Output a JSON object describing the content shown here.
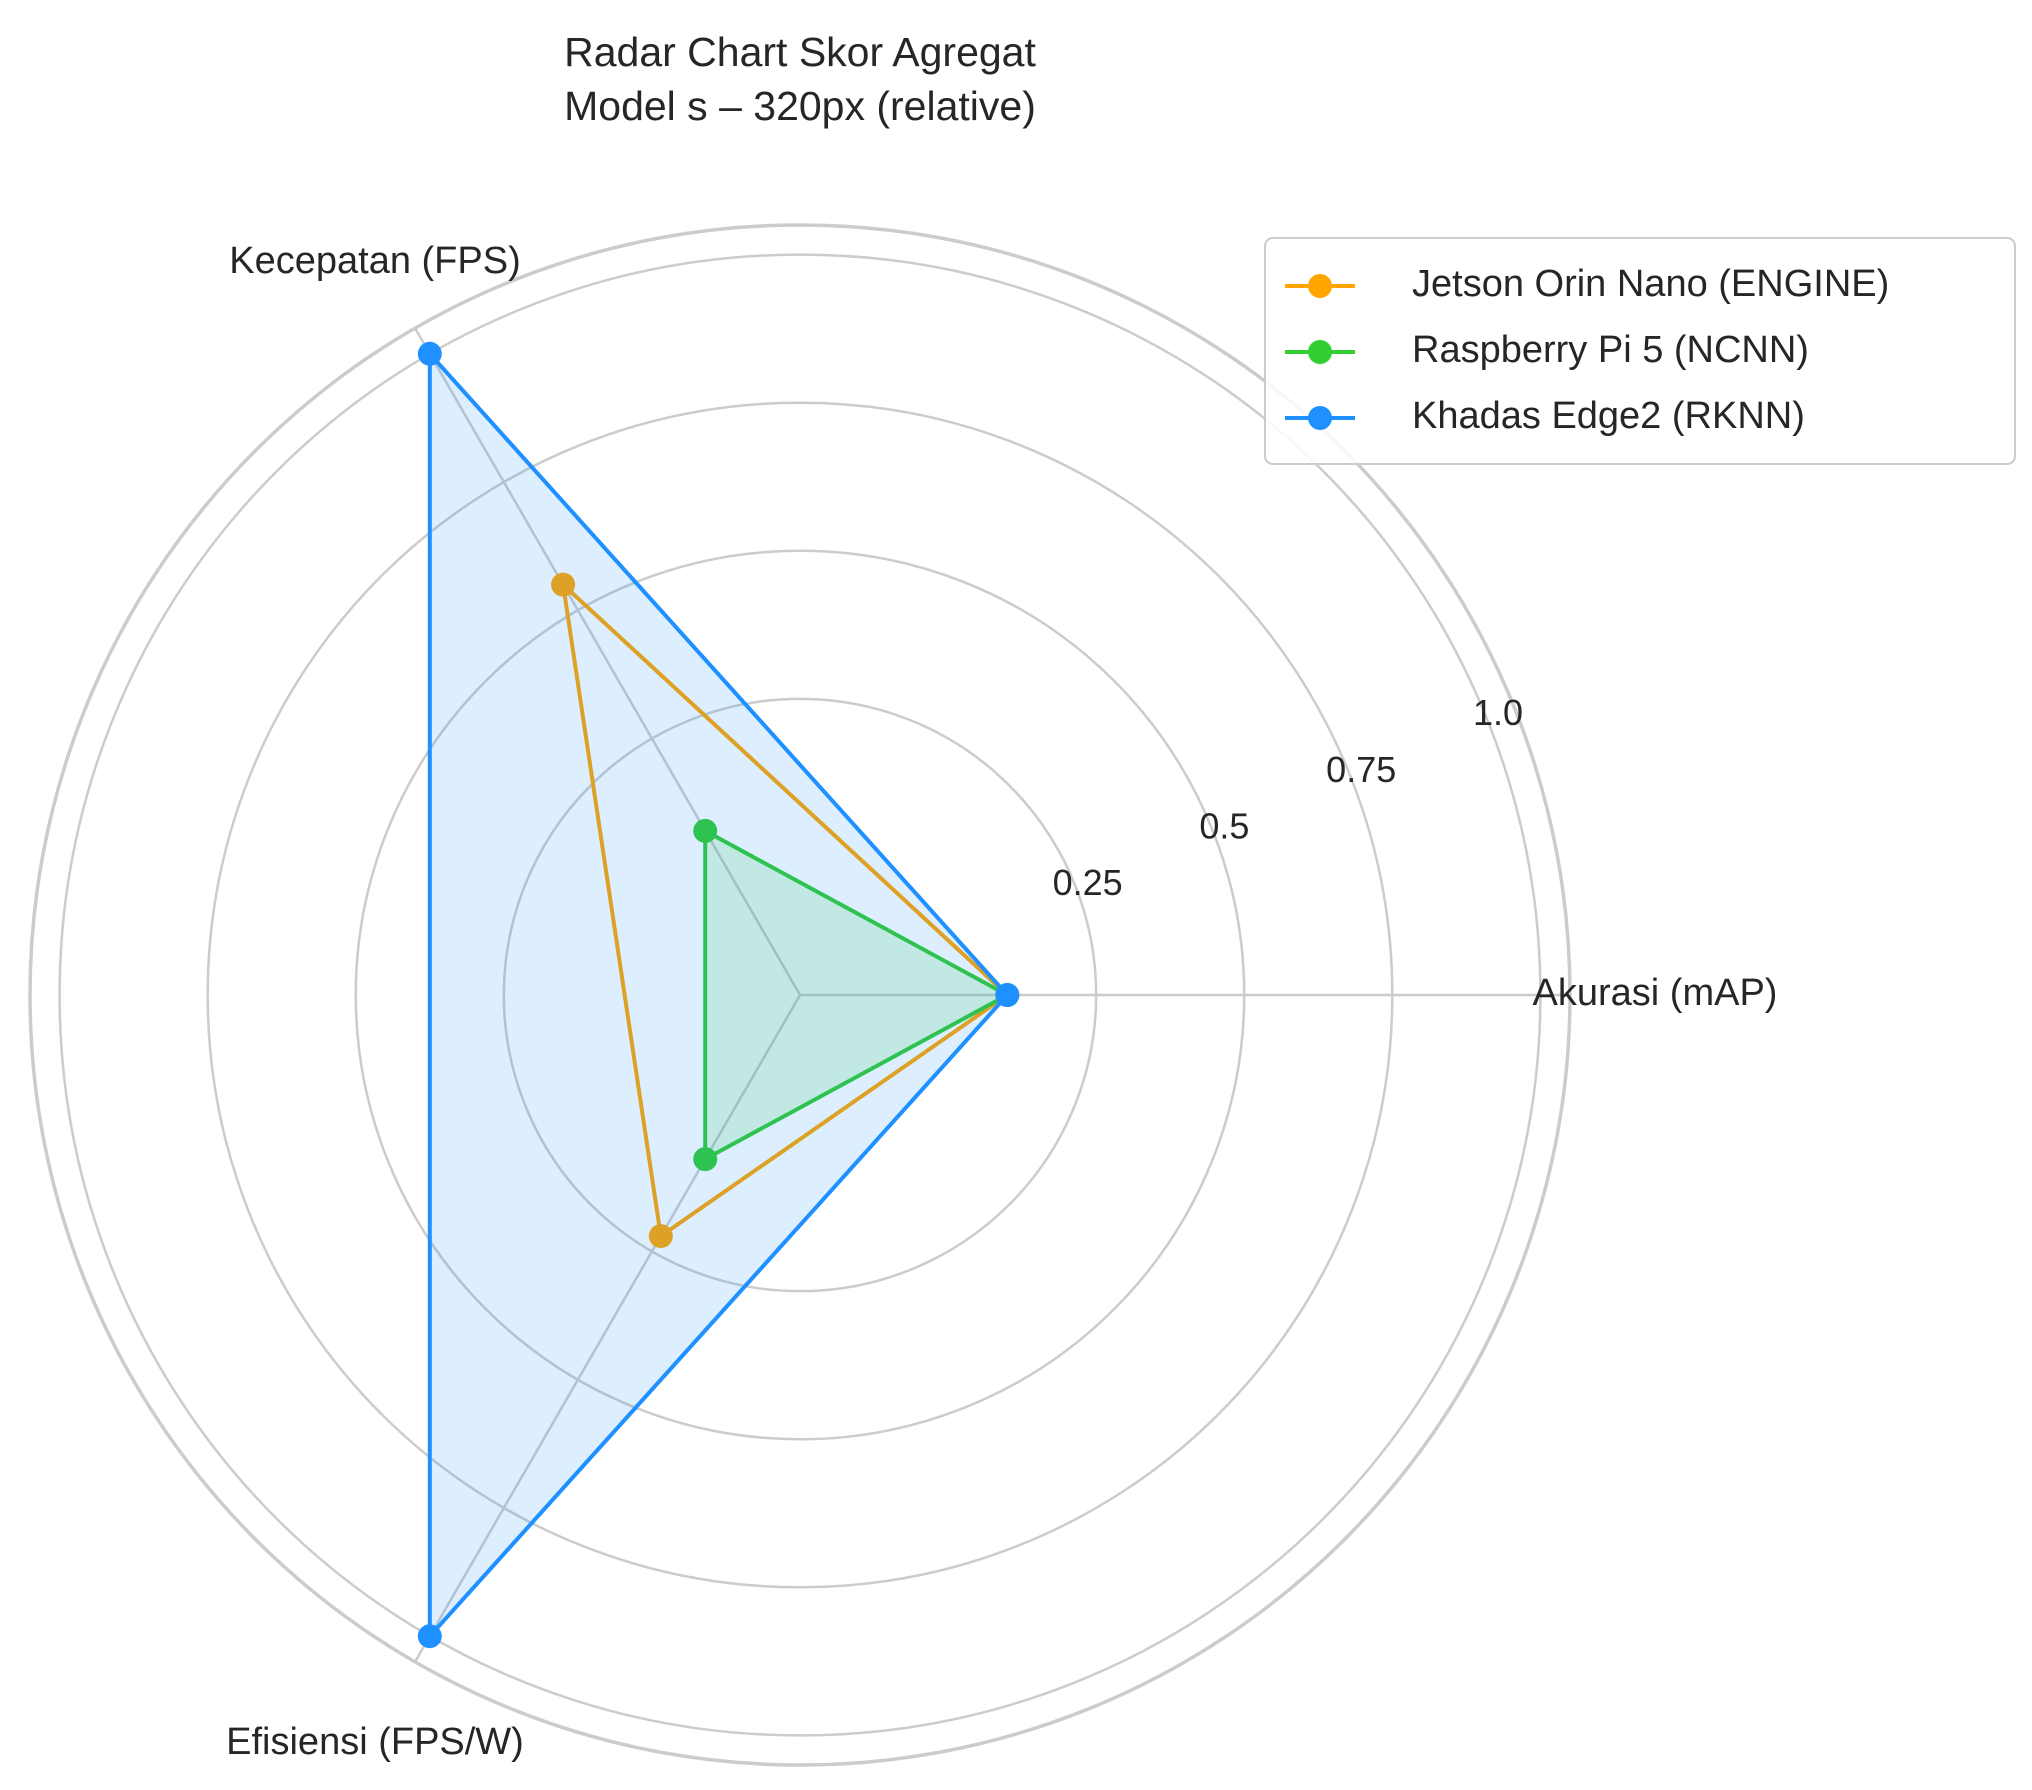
{
  "chart_data": {
    "type": "radar",
    "title_lines": [
      "Radar Chart Skor Agregat",
      "Model s – 320px (relative)"
    ],
    "axes": [
      "Akurasi (mAP)",
      "Kecepatan (FPS)",
      "Efisiensi (FPS/W)"
    ],
    "r_ticks": [
      "0.25",
      "0.5",
      "0.75",
      "1.0"
    ],
    "r_tick_values": [
      0.25,
      0.5,
      0.75,
      1.0
    ],
    "rlim": [
      -0.25,
      1.05
    ],
    "grid": true,
    "legend_position": "top-right",
    "series": [
      {
        "name": "Jetson Orin Nano (ENGINE)",
        "color": "#FFA500",
        "values": [
          0.1,
          0.55,
          0.22
        ],
        "fill": false
      },
      {
        "name": "Raspberry Pi 5 (NCNN)",
        "color": "#32CD32",
        "values": [
          0.1,
          0.07,
          0.07
        ],
        "fill": true
      },
      {
        "name": "Khadas Edge2 (RKNN)",
        "color": "#1E90FF",
        "values": [
          0.1,
          1.0,
          1.0
        ],
        "fill": true
      }
    ]
  }
}
